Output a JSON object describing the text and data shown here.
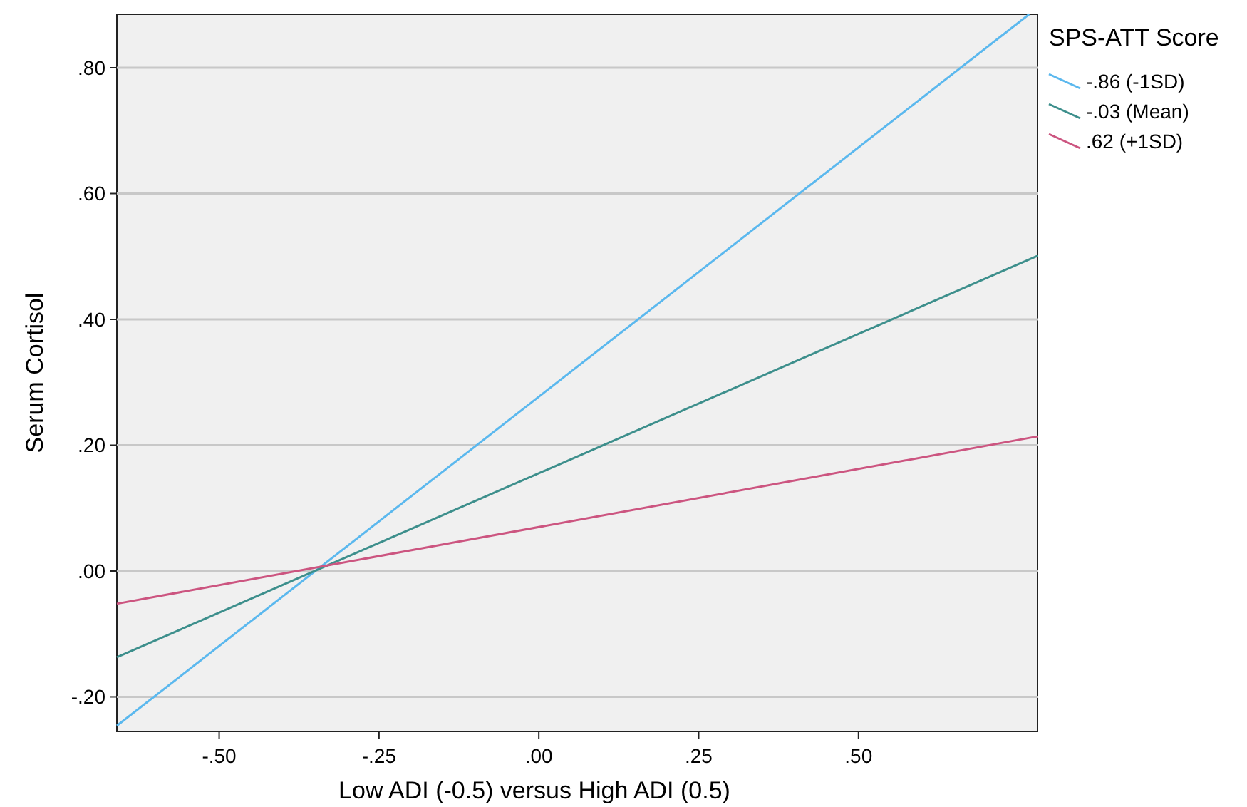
{
  "chart_data": {
    "type": "line",
    "xlabel": "Low ADI (-0.5) versus High ADI (0.5)",
    "ylabel": "Serum Cortisol",
    "legend_title": "SPS-ATT Score",
    "xlim": [
      -0.66,
      0.78
    ],
    "ylim": [
      -0.255,
      0.885
    ],
    "xticks": [
      {
        "value": -0.5,
        "label": "-.50"
      },
      {
        "value": -0.25,
        "label": "-.25"
      },
      {
        "value": 0,
        "label": ".00"
      },
      {
        "value": 0.25,
        "label": ".25"
      },
      {
        "value": 0.5,
        "label": ".50"
      }
    ],
    "yticks": [
      {
        "value": -0.2,
        "label": "-.20"
      },
      {
        "value": 0,
        "label": ".00"
      },
      {
        "value": 0.2,
        "label": ".20"
      },
      {
        "value": 0.4,
        "label": ".40"
      },
      {
        "value": 0.6,
        "label": ".60"
      },
      {
        "value": 0.8,
        "label": ".80"
      }
    ],
    "grid": "y",
    "legend": "top right",
    "line_style": "solid",
    "series": [
      {
        "name": "-.86 (-1SD)",
        "color": "#5bb8ee",
        "x": [
          -0.66,
          0.767
        ],
        "values": [
          -0.246,
          0.885
        ]
      },
      {
        "name": "-.03 (Mean)",
        "color": "#3d8f8c",
        "x": [
          -0.66,
          0.78
        ],
        "values": [
          -0.137,
          0.501
        ]
      },
      {
        "name": ".62 (+1SD)",
        "color": "#cc5580",
        "x": [
          -0.66,
          0.78
        ],
        "values": [
          -0.052,
          0.214
        ]
      }
    ]
  }
}
